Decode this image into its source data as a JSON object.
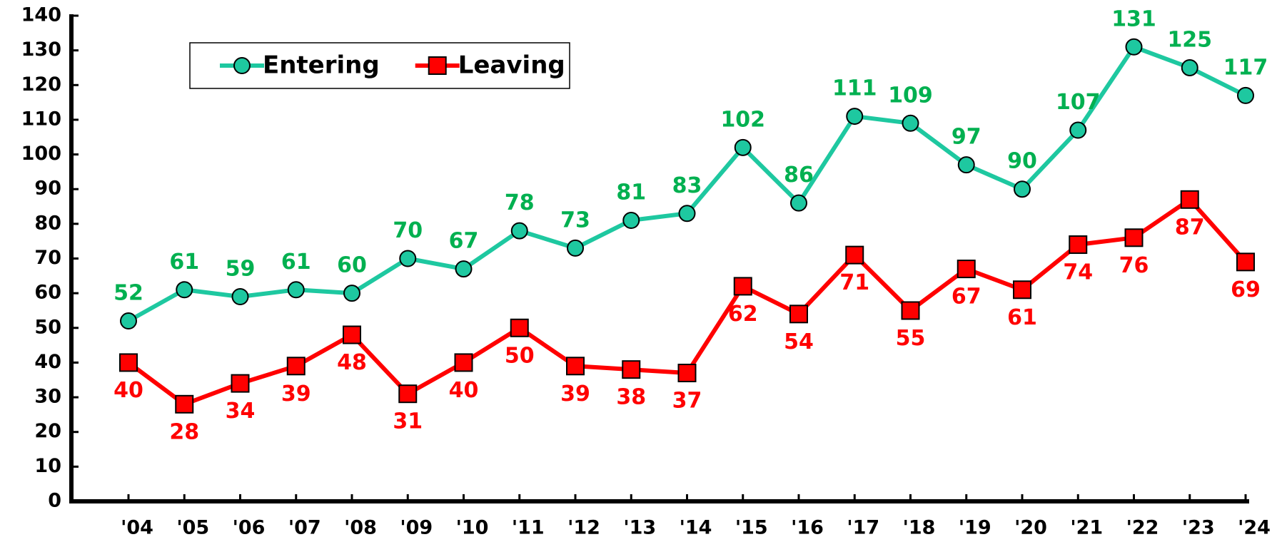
{
  "chart_data": {
    "type": "line",
    "categories": [
      "'04",
      "'05",
      "'06",
      "'07",
      "'08",
      "'09",
      "'10",
      "'11",
      "'12",
      "'13",
      "'14",
      "'15",
      "'16",
      "'17",
      "'18",
      "'19",
      "'20",
      "'21",
      "'22",
      "'23",
      "'24"
    ],
    "series": [
      {
        "name": "Entering",
        "color": "#1ec8a0",
        "label_color": "#00b050",
        "marker": "circle",
        "values": [
          52,
          61,
          59,
          61,
          60,
          70,
          67,
          78,
          73,
          81,
          83,
          102,
          86,
          111,
          109,
          97,
          90,
          107,
          131,
          125,
          117
        ]
      },
      {
        "name": "Leaving",
        "color": "#ff0000",
        "label_color": "#ff0000",
        "marker": "square",
        "values": [
          40,
          28,
          34,
          39,
          48,
          31,
          40,
          50,
          39,
          38,
          37,
          62,
          54,
          71,
          55,
          67,
          61,
          74,
          76,
          87,
          69
        ]
      }
    ],
    "ylim": [
      0,
      140
    ],
    "yticks": [
      0,
      10,
      20,
      30,
      40,
      50,
      60,
      70,
      80,
      90,
      100,
      110,
      120,
      130,
      140
    ],
    "grid": false,
    "legend": "top-left"
  }
}
